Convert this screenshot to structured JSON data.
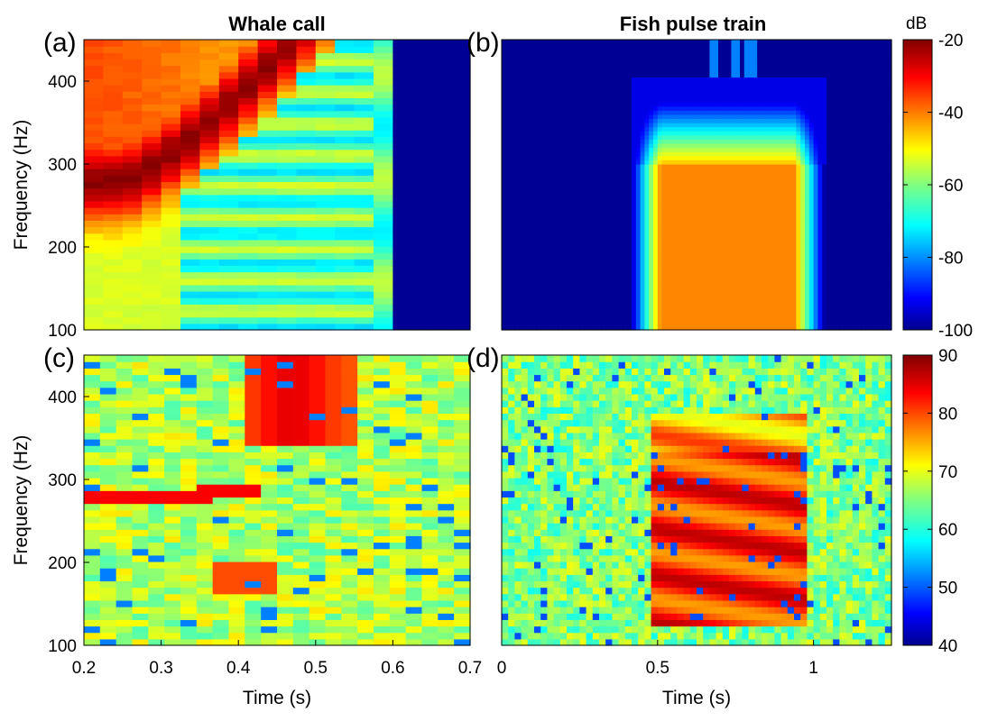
{
  "chart_data": [
    {
      "type": "heatmap",
      "panel_label": "(a)",
      "title": "Whale call",
      "xlabel": "",
      "ylabel": "Frequency (Hz)",
      "xlim": [
        0.2,
        0.7
      ],
      "ylim": [
        100,
        450
      ],
      "xticks": [],
      "yticks": [
        100,
        200,
        300,
        400
      ],
      "colorbar": "db",
      "features": [
        {
          "kind": "ridge",
          "t_start": 0.2,
          "f_start": 280,
          "t_end": 0.45,
          "f_end": 430,
          "peak_db": -20
        },
        {
          "kind": "noise_floor_cutoff",
          "t": 0.61,
          "db": -100
        }
      ]
    },
    {
      "type": "heatmap",
      "panel_label": "(b)",
      "title": "Fish pulse train",
      "xlabel": "",
      "ylabel": "",
      "xlim": [
        0,
        1.25
      ],
      "ylim": [
        100,
        450
      ],
      "xticks": [],
      "yticks": [],
      "colorbar": "db",
      "features": [
        {
          "kind": "harmonic_stack",
          "t_start": 0.45,
          "t_end": 1.0,
          "f_low": 110,
          "f_high": 300,
          "harmonic_spacing_hz": 10,
          "peak_db": -28
        }
      ]
    },
    {
      "type": "heatmap",
      "panel_label": "(c)",
      "title": "",
      "xlabel": "Time (s)",
      "ylabel": "Frequency (Hz)",
      "xlim": [
        0.2,
        0.7
      ],
      "ylim": [
        100,
        450
      ],
      "xticks": [
        0.2,
        0.3,
        0.4,
        0.5,
        0.6,
        0.7
      ],
      "yticks": [
        100,
        200,
        300,
        400
      ],
      "colorbar": "level",
      "features": [
        {
          "kind": "ridge",
          "t_start": 0.2,
          "f_start": 275,
          "t_end": 0.42,
          "f_end": 285,
          "peak_level": 84
        },
        {
          "kind": "blob",
          "t_start": 0.4,
          "t_end": 0.56,
          "f_low": 340,
          "f_high": 450,
          "peak_level": 88
        },
        {
          "kind": "blob",
          "t_start": 0.36,
          "t_end": 0.46,
          "f_low": 165,
          "f_high": 200,
          "peak_level": 80
        }
      ]
    },
    {
      "type": "heatmap",
      "panel_label": "(d)",
      "title": "",
      "xlabel": "Time (s)",
      "ylabel": "",
      "xlim": [
        0,
        1.25
      ],
      "ylim": [
        100,
        450
      ],
      "xticks": [
        0,
        0.5,
        1
      ],
      "yticks": [],
      "colorbar": "level",
      "features": [
        {
          "kind": "harmonic_stack",
          "t_start": 0.47,
          "t_end": 0.98,
          "f_low": 120,
          "f_high": 380,
          "peak_level": 88
        }
      ]
    }
  ],
  "colorbars": {
    "db": {
      "label": "dB",
      "lim": [
        -100,
        -20
      ],
      "ticks": [
        -20,
        -40,
        -60,
        -80,
        -100
      ],
      "colormap": "jet"
    },
    "level": {
      "label": "",
      "lim": [
        40,
        90
      ],
      "ticks": [
        90,
        80,
        70,
        60,
        50,
        40
      ],
      "colormap": "jet"
    }
  }
}
